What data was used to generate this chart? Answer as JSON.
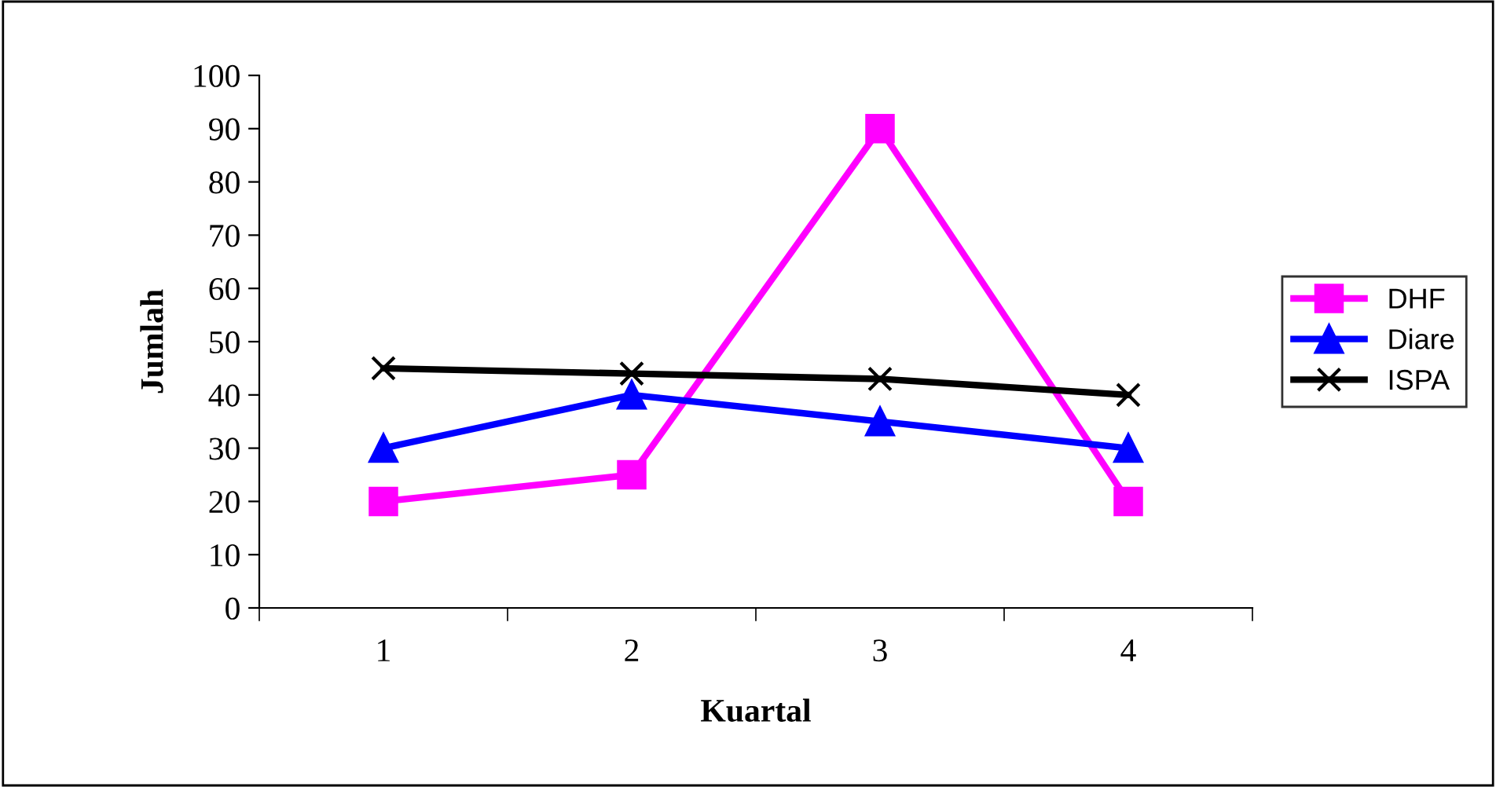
{
  "chart_data": {
    "type": "line",
    "xlabel": "Kuartal",
    "ylabel": "Jumlah",
    "categories": [
      "1",
      "2",
      "3",
      "4"
    ],
    "series": [
      {
        "name": "DHF",
        "color": "#ff00ff",
        "marker": "square",
        "values": [
          20,
          25,
          90,
          20
        ]
      },
      {
        "name": "Diare",
        "color": "#0000ff",
        "marker": "triangle",
        "values": [
          30,
          40,
          35,
          30
        ]
      },
      {
        "name": "ISPA",
        "color": "#000000",
        "marker": "cross",
        "values": [
          45,
          44,
          43,
          40
        ]
      }
    ],
    "ylim": [
      0,
      100
    ],
    "yticks": [
      0,
      10,
      20,
      30,
      40,
      50,
      60,
      70,
      80,
      90,
      100
    ],
    "grid": false,
    "legend": "right",
    "line_style": "solid"
  }
}
